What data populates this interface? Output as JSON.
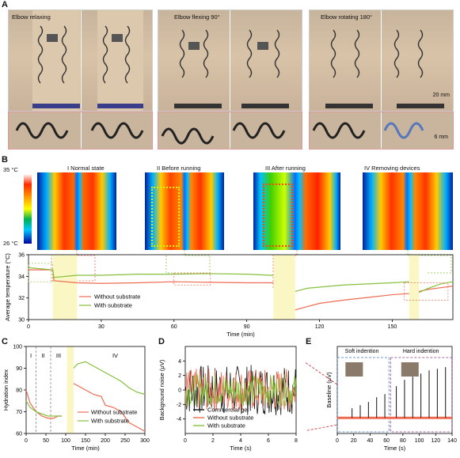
{
  "panel_labels": {
    "a": "A",
    "b": "B",
    "c": "C",
    "d": "D",
    "e": "E"
  },
  "panel_a": {
    "captions": [
      "Elbow relaxing",
      "Elbow flexing 90°",
      "Elbow rotating 180°"
    ],
    "scale_bar_main": "20 mm",
    "scale_bar_zoom": "6 mm"
  },
  "panel_b": {
    "colorbar_max": "35 °C",
    "colorbar_min": "26 °C",
    "state_titles": [
      "I Normal state",
      "II Before running",
      "III After running",
      "IV Removing devices"
    ]
  },
  "colors": {
    "without_substrate": "#ee6a50",
    "with_substrate": "#86c03c",
    "commercial_gel": "#111111",
    "highlight": "#fbf7c4"
  },
  "chart_data": [
    {
      "id": "B",
      "type": "line",
      "xlabel": "Time (min)",
      "ylabel": "Average temperature (°C)",
      "xlim": [
        0,
        175
      ],
      "ylim": [
        30,
        36
      ],
      "xticks": [
        0,
        30,
        60,
        90,
        120,
        150
      ],
      "yticks": [
        30,
        32,
        34,
        36
      ],
      "highlight_ranges": [
        [
          10,
          20
        ],
        [
          101,
          110
        ],
        [
          157,
          161
        ]
      ],
      "series": [
        {
          "name": "Without substrate",
          "x": [
            0,
            5,
            10,
            10.5,
            20,
            30,
            45,
            60,
            75,
            90,
            100,
            101
          ],
          "y": [
            34.6,
            34.6,
            34.6,
            33.6,
            33.4,
            33.35,
            33.4,
            33.5,
            33.45,
            33.4,
            33.4,
            33.4
          ]
        },
        {
          "name": "",
          "x": [
            110,
            115,
            120,
            130,
            140,
            150,
            157
          ],
          "y": [
            30.9,
            31.2,
            31.5,
            31.8,
            32.05,
            32.3,
            32.4
          ]
        },
        {
          "name": "",
          "x": [
            161,
            165,
            170,
            175
          ],
          "y": [
            32.6,
            32.8,
            32.95,
            33.1
          ]
        },
        {
          "name": "With substrate",
          "x": [
            0,
            5,
            10,
            10.5,
            20,
            30,
            45,
            60,
            75,
            90,
            100,
            101
          ],
          "y": [
            34.8,
            34.7,
            34.6,
            33.9,
            34.1,
            34.1,
            34.2,
            34.2,
            34.25,
            34.2,
            34.1,
            34.1
          ]
        },
        {
          "name": "",
          "x": [
            110,
            115,
            120,
            130,
            140,
            150,
            157
          ],
          "y": [
            32.6,
            32.9,
            33.0,
            33.2,
            33.3,
            33.4,
            33.5
          ]
        },
        {
          "name": "",
          "x": [
            161,
            165,
            170,
            175
          ],
          "y": [
            32.5,
            32.9,
            33.3,
            33.5
          ]
        }
      ]
    },
    {
      "id": "C",
      "type": "line",
      "xlabel": "Time (min)",
      "ylabel": "Hydration index",
      "xlim": [
        0,
        300
      ],
      "ylim": [
        60,
        100
      ],
      "xticks": [
        0,
        50,
        100,
        150,
        200,
        250,
        300
      ],
      "yticks": [
        60,
        70,
        80,
        90,
        100
      ],
      "phase_labels": [
        "I",
        "II",
        "III",
        "IV"
      ],
      "highlight_ranges": [
        [
          103,
          120
        ]
      ],
      "series": [
        {
          "name": "Without substrate",
          "x": [
            0,
            10,
            25,
            40,
            55,
            70,
            80,
            90
          ],
          "y": [
            80,
            74,
            70,
            68,
            67,
            67,
            68,
            68
          ]
        },
        {
          "name": "",
          "x": [
            120,
            130,
            150,
            170,
            190,
            200,
            220,
            240,
            260,
            280,
            300
          ],
          "y": [
            83,
            82,
            80,
            78,
            77,
            73,
            72,
            70,
            65,
            63,
            61
          ]
        },
        {
          "name": "With substrate",
          "x": [
            0,
            10,
            25,
            40,
            55,
            70,
            80,
            90
          ],
          "y": [
            75,
            72,
            70,
            69,
            68,
            68,
            68,
            68
          ]
        },
        {
          "name": "",
          "x": [
            120,
            130,
            150,
            160,
            180,
            200,
            220,
            240,
            260,
            280,
            300
          ],
          "y": [
            90,
            92,
            93,
            92,
            90,
            88,
            86,
            84,
            81,
            79,
            78
          ]
        }
      ]
    },
    {
      "id": "D",
      "type": "line",
      "xlabel": "Time (s)",
      "ylabel": "Background noise (μV)",
      "xlim": [
        0,
        8
      ],
      "ylim": [
        -6,
        6
      ],
      "xticks": [
        0,
        2,
        4,
        6,
        8
      ],
      "yticks": [
        -4,
        -2,
        0,
        2,
        4
      ],
      "series": [
        {
          "name": "Commercial gel",
          "amplitude": 3.5
        },
        {
          "name": "Without substrate",
          "amplitude": 3.0
        },
        {
          "name": "With substrate",
          "amplitude": 2.2
        }
      ]
    },
    {
      "id": "E",
      "type": "line",
      "xlabel": "Time (s)",
      "ylabel": "Baseline (μV)",
      "xlim": [
        0,
        140
      ],
      "xticks": [
        0,
        20,
        40,
        60,
        80,
        100,
        120,
        140
      ],
      "annotations": [
        "Soft indention",
        "Hard indention"
      ]
    }
  ]
}
